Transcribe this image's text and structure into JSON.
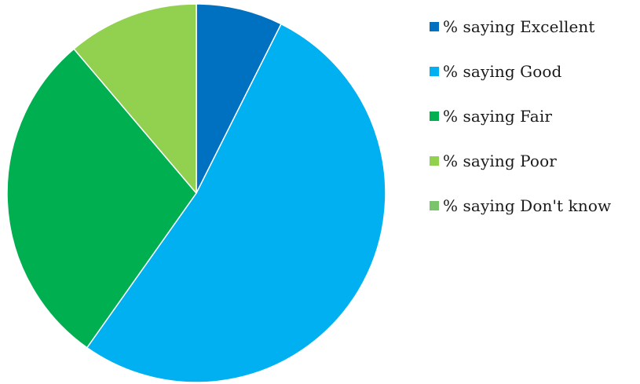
{
  "chart_data": {
    "type": "pie",
    "title": "",
    "categories": [
      "% saying Excellent",
      "% saying Good",
      "% saying Fair",
      "% saying Poor",
      "% saying Don't know"
    ],
    "values": [
      7.4,
      52.4,
      29.0,
      11.2,
      0.0
    ],
    "colors": [
      "#0070C0",
      "#00B0F0",
      "#00B050",
      "#92D050",
      "#7AC46C"
    ],
    "legend_position": "right",
    "start_angle_deg": 0,
    "direction": "clockwise"
  }
}
